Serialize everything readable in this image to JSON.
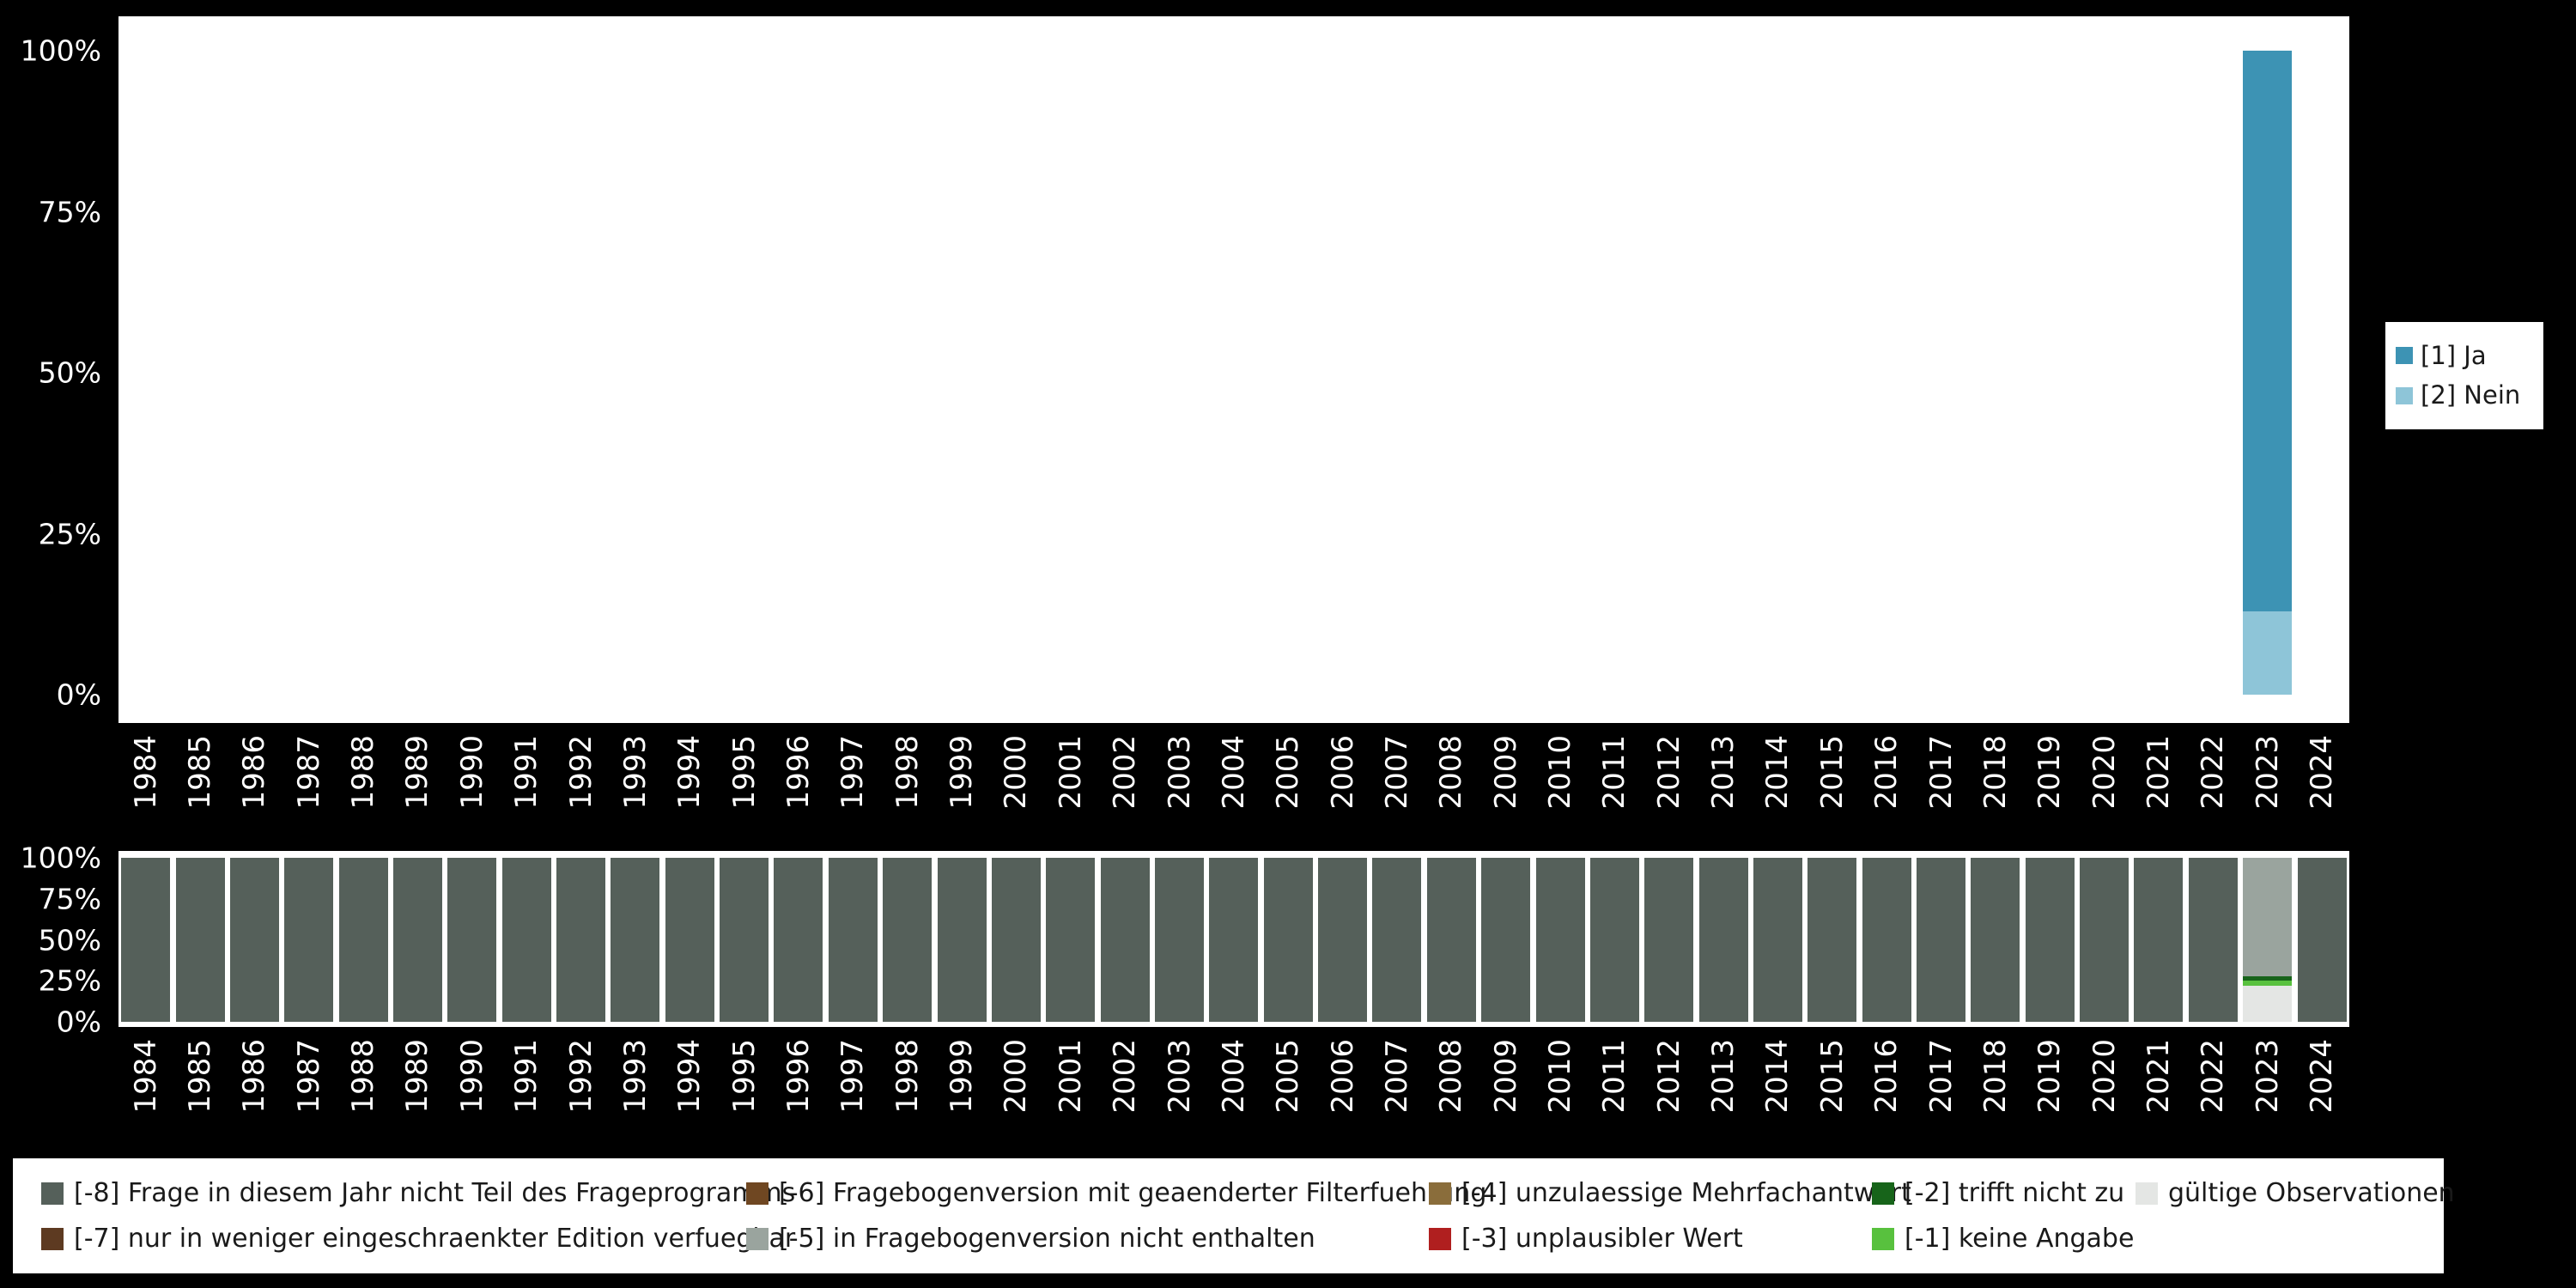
{
  "colors": {
    "background": "#000000",
    "panel": "#ffffff",
    "axis_text": "#ffffff",
    "legend_background": "#ffffff",
    "legend_text": "#1a1a1a"
  },
  "chart_data": [
    {
      "id": "responses",
      "type": "bar",
      "stacked": true,
      "title": "",
      "xlabel": "",
      "ylabel": "",
      "ylim": [
        0,
        100
      ],
      "grid": false,
      "legend_position": "right",
      "yticks": [
        "100%",
        "75%",
        "50%",
        "25%",
        "0%"
      ],
      "categories": [
        1984,
        1985,
        1986,
        1987,
        1988,
        1989,
        1990,
        1991,
        1992,
        1993,
        1994,
        1995,
        1996,
        1997,
        1998,
        1999,
        2000,
        2001,
        2002,
        2003,
        2004,
        2005,
        2006,
        2007,
        2008,
        2009,
        2010,
        2011,
        2012,
        2013,
        2014,
        2015,
        2016,
        2017,
        2018,
        2019,
        2020,
        2021,
        2022,
        2023,
        2024
      ],
      "series": [
        {
          "name": "[1] Ja",
          "color": "#3d93b4",
          "default": 0,
          "values_by_year": {
            "2023": 87
          }
        },
        {
          "name": "[2] Nein",
          "color": "#8ec5d8",
          "default": 0,
          "values_by_year": {
            "2023": 13
          }
        }
      ]
    },
    {
      "id": "missing",
      "type": "bar",
      "stacked": true,
      "title": "",
      "xlabel": "",
      "ylabel": "",
      "ylim": [
        0,
        100
      ],
      "grid": false,
      "legend_position": "bottom",
      "yticks": [
        "100%",
        "75%",
        "50%",
        "25%",
        "0%"
      ],
      "categories": [
        1984,
        1985,
        1986,
        1987,
        1988,
        1989,
        1990,
        1991,
        1992,
        1993,
        1994,
        1995,
        1996,
        1997,
        1998,
        1999,
        2000,
        2001,
        2002,
        2003,
        2004,
        2005,
        2006,
        2007,
        2008,
        2009,
        2010,
        2011,
        2012,
        2013,
        2014,
        2015,
        2016,
        2017,
        2018,
        2019,
        2020,
        2021,
        2022,
        2023,
        2024
      ],
      "series": [
        {
          "name": "[-8] Frage in diesem Jahr nicht Teil des Frageprogramms",
          "color": "#55605a",
          "default": 100,
          "values_by_year": {
            "2023": 0
          }
        },
        {
          "name": "[-7] nur in weniger eingeschraenkter Edition verfuegbar",
          "color": "#5d3a21",
          "default": 0,
          "values_by_year": {}
        },
        {
          "name": "[-6] Fragebogenversion mit geaenderter Filterfuehrung",
          "color": "#6f4722",
          "default": 0,
          "values_by_year": {}
        },
        {
          "name": "[-5] in Fragebogenversion nicht enthalten",
          "color": "#9aa49e",
          "default": 0,
          "values_by_year": {
            "2023": 72
          }
        },
        {
          "name": "[-4] unzulaessige Mehrfachantwort",
          "color": "#8a6d3b",
          "default": 0,
          "values_by_year": {}
        },
        {
          "name": "[-3] unplausibler Wert",
          "color": "#b01f1f",
          "default": 0,
          "values_by_year": {}
        },
        {
          "name": "[-2] trifft nicht zu",
          "color": "#17641a",
          "default": 0,
          "values_by_year": {
            "2023": 3
          }
        },
        {
          "name": "[-1] keine Angabe",
          "color": "#58c13e",
          "default": 0,
          "values_by_year": {
            "2023": 3
          }
        },
        {
          "name": "gültige Observationen",
          "color": "#e4e6e4",
          "default": 0,
          "values_by_year": {
            "2023": 22
          }
        }
      ]
    }
  ]
}
